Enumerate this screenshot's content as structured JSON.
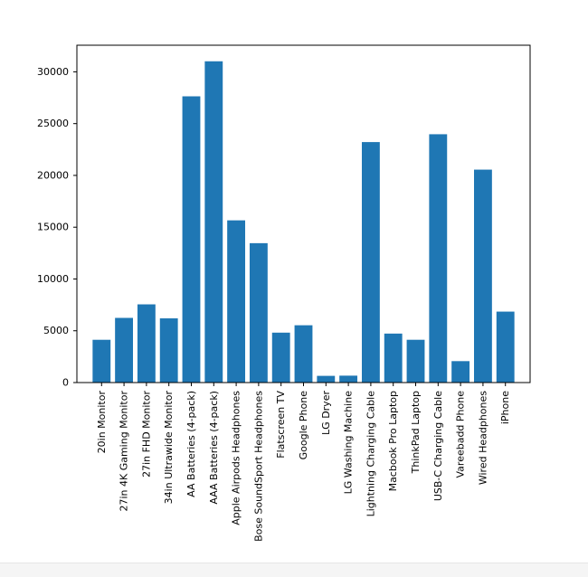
{
  "chart_data": {
    "type": "bar",
    "categories": [
      "20in Monitor",
      "27in 4K Gaming Monitor",
      "27in FHD Monitor",
      "34in Ultrawide Monitor",
      "AA Batteries (4-pack)",
      "AAA Batteries (4-pack)",
      "Apple Airpods Headphones",
      "Bose SoundSport Headphones",
      "Flatscreen TV",
      "Google Phone",
      "LG Dryer",
      "LG Washing Machine",
      "Lightning Charging Cable",
      "Macbook Pro Laptop",
      "ThinkPad Laptop",
      "USB-C Charging Cable",
      "Vareebadd Phone",
      "Wired Headphones",
      "iPhone"
    ],
    "values": [
      4129,
      6244,
      7550,
      6199,
      27635,
      31017,
      15661,
      13457,
      4819,
      5532,
      646,
      666,
      23217,
      4728,
      4130,
      23975,
      2068,
      20557,
      6849
    ],
    "title": "",
    "xlabel": "",
    "ylabel": "",
    "ylim": [
      0,
      32569
    ],
    "yticks": [
      0,
      5000,
      10000,
      15000,
      20000,
      25000,
      30000
    ],
    "color": "#1f77b4",
    "grid": false,
    "legend": "none"
  }
}
